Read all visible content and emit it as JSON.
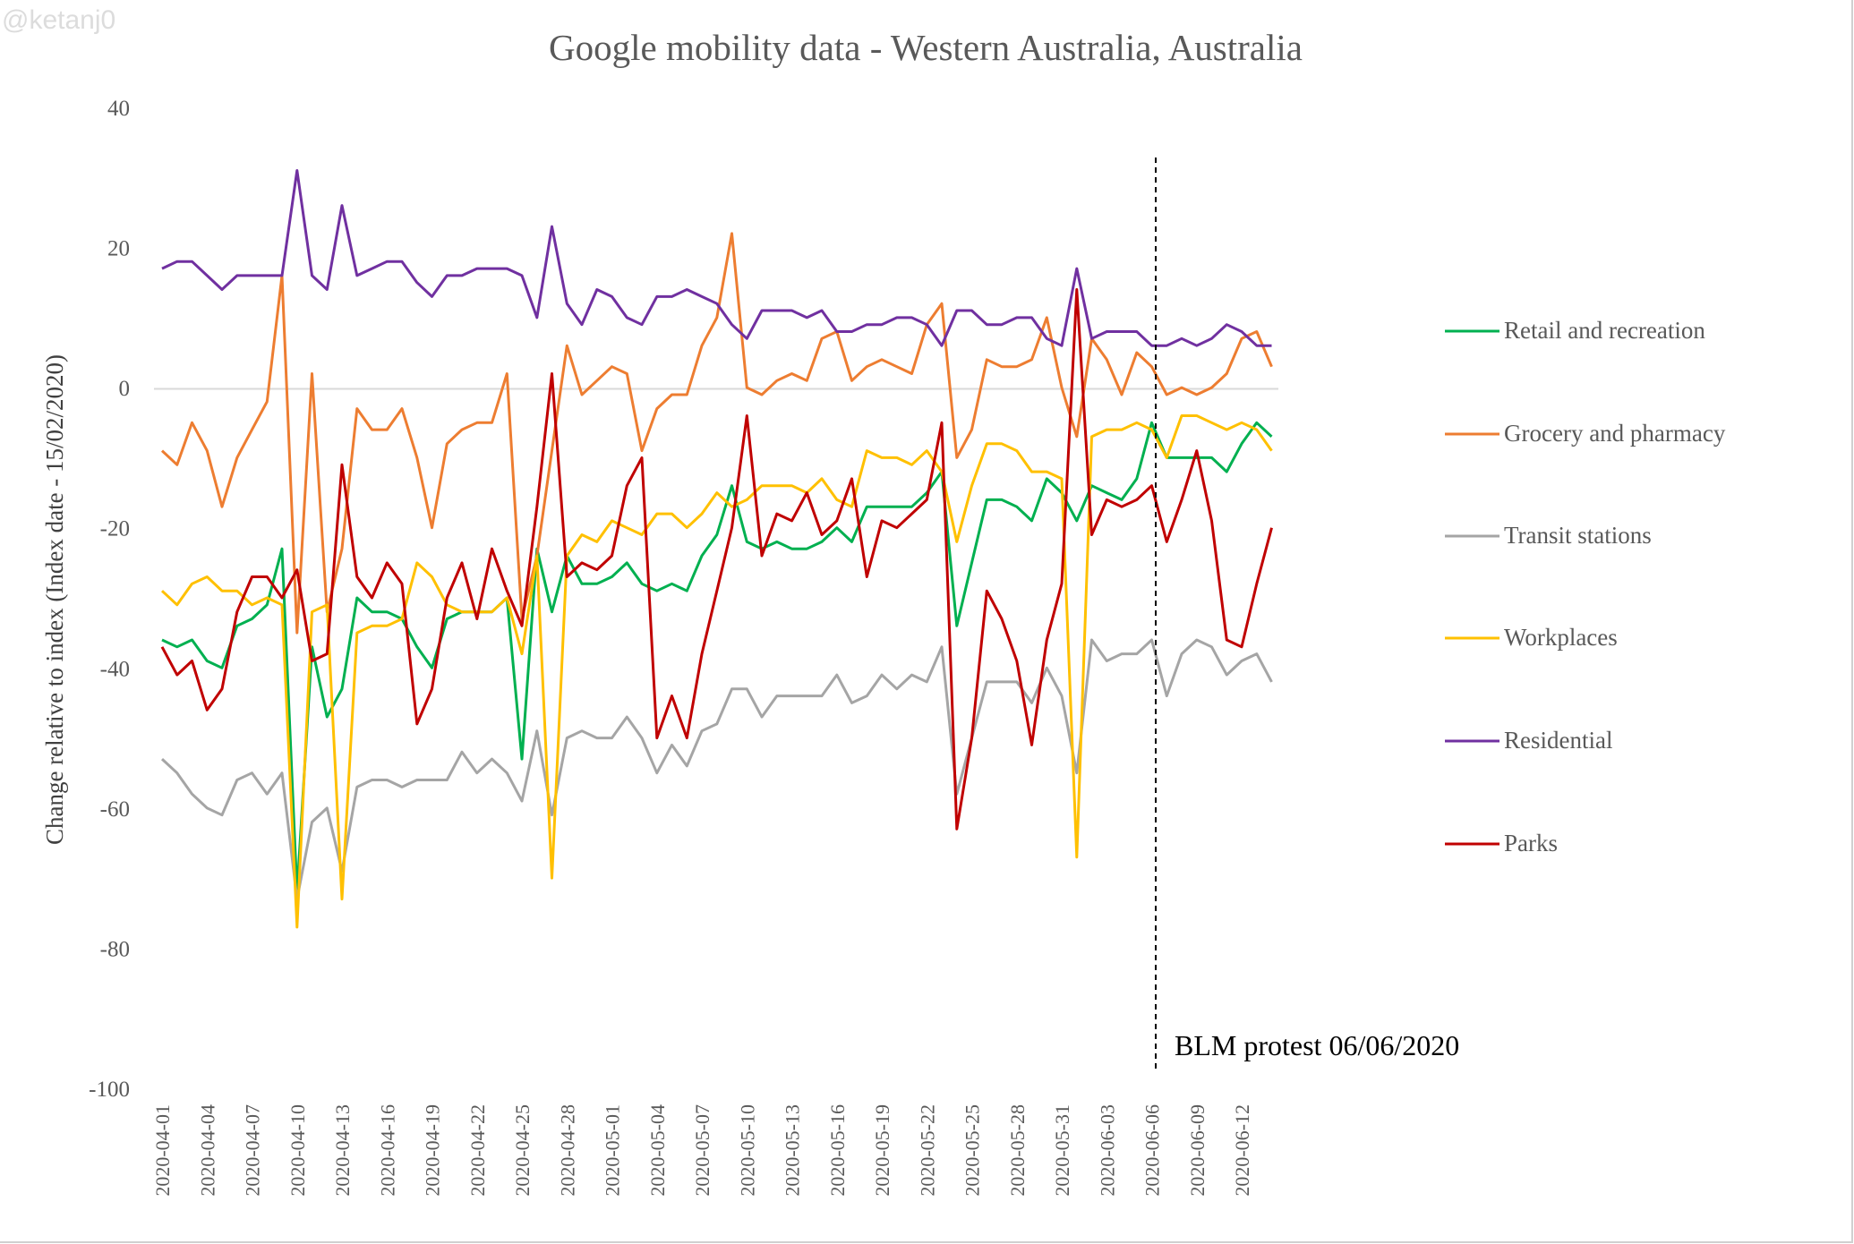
{
  "watermark": "@ketanj0",
  "chart_data": {
    "type": "line",
    "title": "Google mobility data - Western Australia, Australia",
    "xlabel": "",
    "ylabel": "Change relative to index (Index date - 15/02/2020)",
    "ylim": [
      -100,
      40
    ],
    "yticks": [
      40,
      20,
      0,
      -20,
      -40,
      -60,
      -80,
      -100
    ],
    "x_start": "2020-04-01",
    "x_end": "2020-06-14",
    "xtick_labels": [
      "2020-04-01",
      "2020-04-04",
      "2020-04-07",
      "2020-04-10",
      "2020-04-13",
      "2020-04-16",
      "2020-04-19",
      "2020-04-22",
      "2020-04-25",
      "2020-04-28",
      "2020-05-01",
      "2020-05-04",
      "2020-05-07",
      "2020-05-10",
      "2020-05-13",
      "2020-05-16",
      "2020-05-19",
      "2020-05-22",
      "2020-05-25",
      "2020-05-28",
      "2020-05-31",
      "2020-06-03",
      "2020-06-06",
      "2020-06-09",
      "2020-06-12"
    ],
    "legend_position": "right",
    "grid": "zero line only",
    "annotation": {
      "label": "BLM protest 06/06/2020",
      "x": "2020-06-06",
      "style": "dashed vertical line"
    },
    "series": [
      {
        "name": "Retail and recreation",
        "color": "#00B050",
        "values": [
          -36,
          -37,
          -36,
          -39,
          -40,
          -34,
          -33,
          -31,
          -23,
          -72,
          -37,
          -47,
          -43,
          -30,
          -32,
          -32,
          -33,
          -37,
          -40,
          -33,
          -32,
          -32,
          -32,
          -30,
          -53,
          -23,
          -32,
          -24,
          -28,
          -28,
          -27,
          -25,
          -28,
          -29,
          -28,
          -29,
          -24,
          -21,
          -14,
          -22,
          -23,
          -22,
          -23,
          -23,
          -22,
          -20,
          -22,
          -17,
          -17,
          -17,
          -17,
          -15,
          -12,
          -34,
          -25,
          -16,
          -16,
          -17,
          -19,
          -13,
          -15,
          -19,
          -14,
          -15,
          -16,
          -13,
          -5,
          -10,
          -10,
          -10,
          -10,
          -12,
          -8,
          -5,
          -7
        ]
      },
      {
        "name": "Grocery and pharmacy",
        "color": "#ED7D31",
        "values": [
          -9,
          -11,
          -5,
          -9,
          -17,
          -10,
          -6,
          -2,
          16,
          -35,
          2,
          -32,
          -23,
          -3,
          -6,
          -6,
          -3,
          -10,
          -20,
          -8,
          -6,
          -5,
          -5,
          2,
          -33,
          -24,
          -9,
          6,
          -1,
          1,
          3,
          2,
          -9,
          -3,
          -1,
          -1,
          6,
          10,
          22,
          0,
          -1,
          1,
          2,
          1,
          7,
          8,
          1,
          3,
          4,
          3,
          2,
          9,
          12,
          -10,
          -6,
          4,
          3,
          3,
          4,
          10,
          0,
          -7,
          7,
          4,
          -1,
          5,
          3,
          -1,
          0,
          -1,
          0,
          2,
          7,
          8,
          3
        ]
      },
      {
        "name": "Transit stations",
        "color": "#A5A5A5",
        "values": [
          -53,
          -55,
          -58,
          -60,
          -61,
          -56,
          -55,
          -58,
          -55,
          -73,
          -62,
          -60,
          -69,
          -57,
          -56,
          -56,
          -57,
          -56,
          -56,
          -56,
          -52,
          -55,
          -53,
          -55,
          -59,
          -49,
          -61,
          -50,
          -49,
          -50,
          -50,
          -47,
          -50,
          -55,
          -51,
          -54,
          -49,
          -48,
          -43,
          -43,
          -47,
          -44,
          -44,
          -44,
          -44,
          -41,
          -45,
          -44,
          -41,
          -43,
          -41,
          -42,
          -37,
          -58,
          -50,
          -42,
          -42,
          -42,
          -45,
          -40,
          -44,
          -55,
          -36,
          -39,
          -38,
          -38,
          -36,
          -44,
          -38,
          -36,
          -37,
          -41,
          -39,
          -38,
          -42
        ]
      },
      {
        "name": "Workplaces",
        "color": "#FFC000",
        "values": [
          -29,
          -31,
          -28,
          -27,
          -29,
          -29,
          -31,
          -30,
          -31,
          -77,
          -32,
          -31,
          -73,
          -35,
          -34,
          -34,
          -33,
          -25,
          -27,
          -31,
          -32,
          -32,
          -32,
          -30,
          -38,
          -24,
          -70,
          -24,
          -21,
          -22,
          -19,
          -20,
          -21,
          -18,
          -18,
          -20,
          -18,
          -15,
          -17,
          -16,
          -14,
          -14,
          -14,
          -15,
          -13,
          -16,
          -17,
          -9,
          -10,
          -10,
          -11,
          -9,
          -12,
          -22,
          -14,
          -8,
          -8,
          -9,
          -12,
          -12,
          -13,
          -67,
          -7,
          -6,
          -6,
          -5,
          -6,
          -10,
          -4,
          -4,
          -5,
          -6,
          -5,
          -6,
          -9
        ]
      },
      {
        "name": "Residential",
        "color": "#7030A0",
        "values": [
          17,
          18,
          18,
          16,
          14,
          16,
          16,
          16,
          16,
          31,
          16,
          14,
          26,
          16,
          17,
          18,
          18,
          15,
          13,
          16,
          16,
          17,
          17,
          17,
          16,
          10,
          23,
          12,
          9,
          14,
          13,
          10,
          9,
          13,
          13,
          14,
          13,
          12,
          9,
          7,
          11,
          11,
          11,
          10,
          11,
          8,
          8,
          9,
          9,
          10,
          10,
          9,
          6,
          11,
          11,
          9,
          9,
          10,
          10,
          7,
          6,
          17,
          7,
          8,
          8,
          8,
          6,
          6,
          7,
          6,
          7,
          9,
          8,
          6,
          6
        ]
      },
      {
        "name": "Parks",
        "color": "#C00000",
        "values": [
          -37,
          -41,
          -39,
          -46,
          -43,
          -32,
          -27,
          -27,
          -30,
          -26,
          -39,
          -38,
          -11,
          -27,
          -30,
          -25,
          -28,
          -48,
          -43,
          -30,
          -25,
          -33,
          -23,
          -29,
          -34,
          -17,
          2,
          -27,
          -25,
          -26,
          -24,
          -14,
          -10,
          -50,
          -44,
          -50,
          -38,
          -29,
          -20,
          -4,
          -24,
          -18,
          -19,
          -15,
          -21,
          -19,
          -13,
          -27,
          -19,
          -20,
          -18,
          -16,
          -5,
          -63,
          -50,
          -29,
          -33,
          -39,
          -51,
          -36,
          -28,
          14,
          -21,
          -16,
          -17,
          -16,
          -14,
          -22,
          -16,
          -9,
          -19,
          -36,
          -37,
          -28,
          -20
        ]
      }
    ]
  }
}
